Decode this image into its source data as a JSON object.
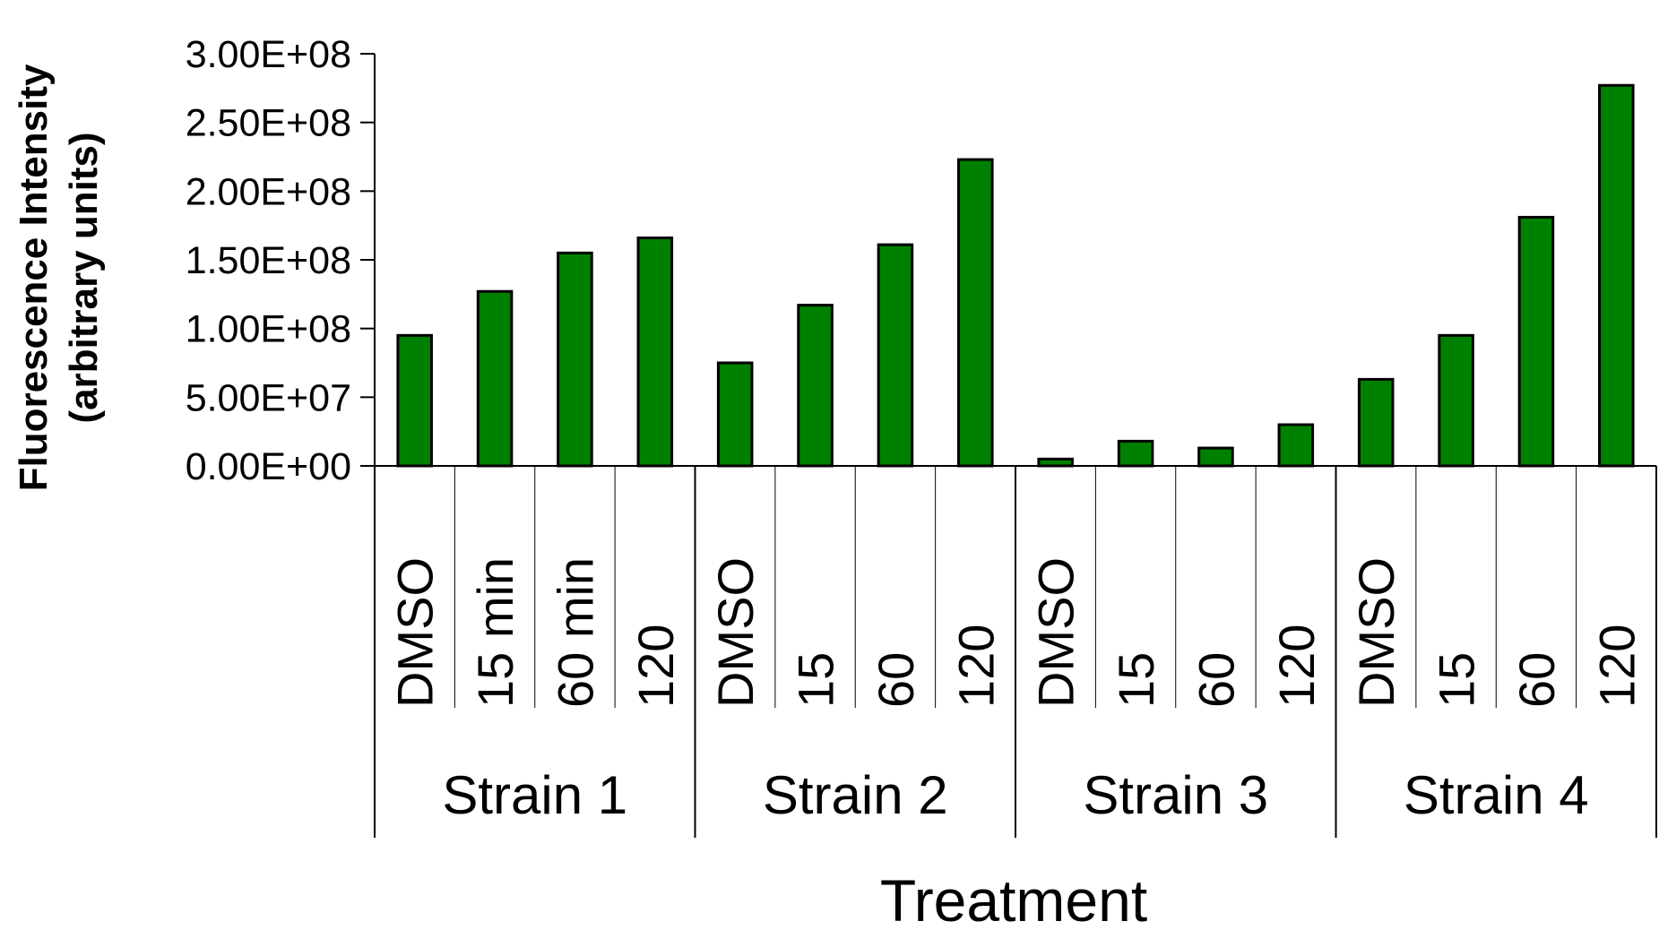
{
  "chart_data": {
    "type": "bar",
    "xlabel": "Treatment",
    "ylabel_lines": [
      "Fluorescence Intensity",
      "(arbitrary units)"
    ],
    "ylim": [
      0,
      300000000
    ],
    "yticks": [
      0,
      50000000,
      100000000,
      150000000,
      200000000,
      250000000,
      300000000
    ],
    "ytick_labels": [
      "0.00E+00",
      "5.00E+07",
      "1.00E+08",
      "1.50E+08",
      "2.00E+08",
      "2.50E+08",
      "3.00E+08"
    ],
    "groups": [
      {
        "label": "Strain 1",
        "categories": [
          "DMSO",
          "15 min",
          "60 min",
          "120"
        ]
      },
      {
        "label": "Strain 2",
        "categories": [
          "DMSO",
          "15",
          "60",
          "120"
        ]
      },
      {
        "label": "Strain 3",
        "categories": [
          "DMSO",
          "15",
          "60",
          "120"
        ]
      },
      {
        "label": "Strain 4",
        "categories": [
          "DMSO",
          "15",
          "60",
          "120"
        ]
      }
    ],
    "values": [
      95000000,
      127000000,
      155000000,
      166000000,
      75000000,
      117000000,
      161000000,
      223000000,
      5000000,
      18000000,
      13000000,
      30000000,
      63000000,
      95000000,
      181000000,
      277000000
    ],
    "bar_color": "#008000",
    "bar_edge_color": "#000000",
    "grid": false,
    "legend": "none"
  }
}
